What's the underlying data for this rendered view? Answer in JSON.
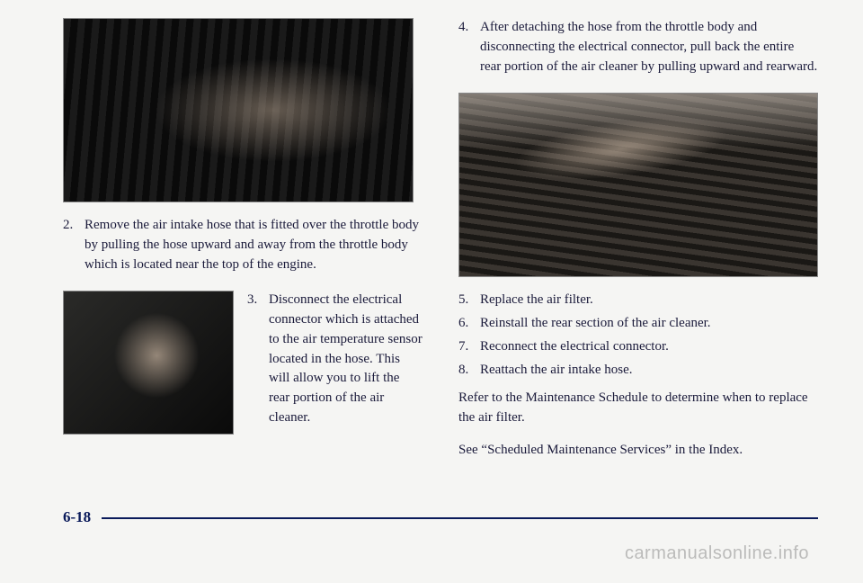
{
  "left": {
    "step2": {
      "num": "2.",
      "text": "Remove the air intake hose that is fitted over the throttle body by pulling the hose upward and away from the throttle body which is located near the top of the engine."
    },
    "step3": {
      "num": "3.",
      "text": "Disconnect the electrical connector which is attached to the air temperature sensor located in the hose. This will allow you to lift the rear portion of the air cleaner."
    }
  },
  "right": {
    "step4": {
      "num": "4.",
      "text": "After detaching the hose from the throttle body and disconnecting the electrical connector, pull back the entire rear portion of the air cleaner by pulling upward and rearward."
    },
    "steps": [
      {
        "num": "5.",
        "text": "Replace the air filter."
      },
      {
        "num": "6.",
        "text": "Reinstall the rear section of the air cleaner."
      },
      {
        "num": "7.",
        "text": "Reconnect the electrical connector."
      },
      {
        "num": "8.",
        "text": "Reattach the air intake hose."
      }
    ],
    "refer1": "Refer to the Maintenance Schedule to determine when to replace the air filter.",
    "refer2": "See “Scheduled Maintenance Services” in the Index."
  },
  "page_number": "6-18",
  "watermark": "carmanualsonline.info"
}
